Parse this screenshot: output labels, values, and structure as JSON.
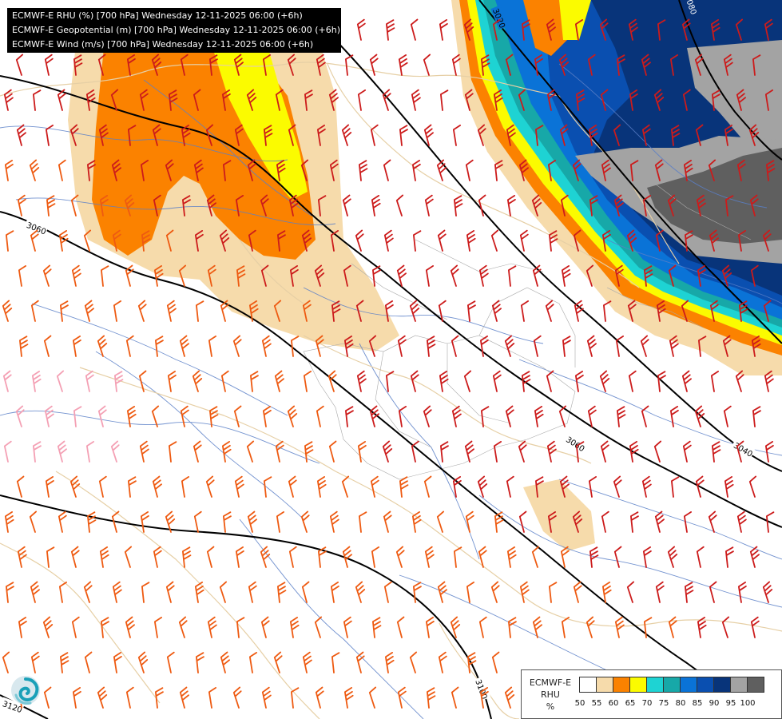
{
  "header": {
    "line1": "ECMWF-E RHU (%) [700 hPa] Wednesday 12-11-2025 06:00 (+6h)",
    "line2": "ECMWF-E Geopotential (m) [700 hPa] Wednesday 12-11-2025 06:00 (+6h)",
    "line3": "ECMWF-E Wind (m/s) [700 hPa] Wednesday 12-11-2025 06:00 (+6h)"
  },
  "legend": {
    "line1": "ECMWF-E",
    "line2": "RHU",
    "line3": "%",
    "bins": [
      {
        "label": "50",
        "color": "#ffffff"
      },
      {
        "label": "55",
        "color": "#f6dbab"
      },
      {
        "label": "60",
        "color": "#fb8200"
      },
      {
        "label": "65",
        "color": "#fbfb00"
      },
      {
        "label": "70",
        "color": "#1ed3d3"
      },
      {
        "label": "75",
        "color": "#17a8a8"
      },
      {
        "label": "80",
        "color": "#0a73d7"
      },
      {
        "label": "85",
        "color": "#0a4fb0"
      },
      {
        "label": "90",
        "color": "#08347a"
      },
      {
        "label": "95",
        "color": "#a3a3a3"
      },
      {
        "label": "100",
        "color": "#5f5f5f"
      }
    ]
  },
  "contours": {
    "labels": [
      "3020",
      "3060",
      "3060",
      "3040",
      "3080",
      "3100",
      "3120"
    ]
  },
  "colors": {
    "barb_red": "#cc1b1b",
    "barb_orange": "#ee5a11",
    "barb_pink": "#f4a0b4",
    "border": "#e6cfa5",
    "river": "#5a7fc7"
  },
  "icons": {
    "logo": "ecmwf-swirl-logo",
    "barb": "wind-barb-icon"
  }
}
